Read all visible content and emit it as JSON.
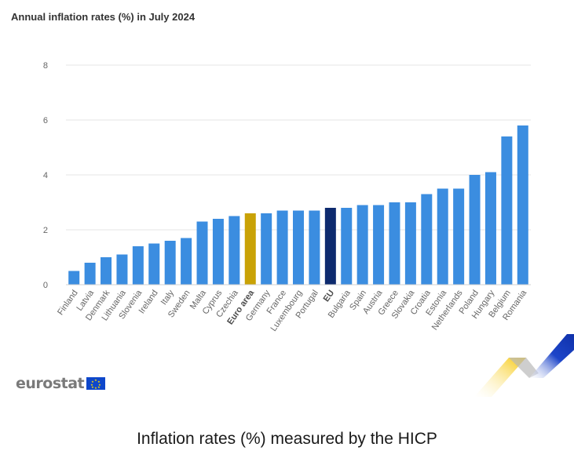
{
  "colors": {
    "default_bar": "#3b8de0",
    "euro_area_bar": "#c9a206",
    "eu_bar": "#0d2a6e"
  },
  "brand": {
    "logo_text": "eurostat"
  },
  "caption": "Inflation rates (%) measured by the HICP",
  "chart_data": {
    "type": "bar",
    "title": "Annual inflation rates (%) in July 2024",
    "xlabel": "",
    "ylabel": "",
    "ylim": [
      0,
      8
    ],
    "yticks": [
      0,
      2,
      4,
      6,
      8
    ],
    "grid": true,
    "categories": [
      "Finland",
      "Latvia",
      "Denmark",
      "Lithuania",
      "Slovenia",
      "Ireland",
      "Italy",
      "Sweden",
      "Malta",
      "Cyprus",
      "Czechia",
      "Euro area",
      "Germany",
      "France",
      "Luxembourg",
      "Portugal",
      "EU",
      "Bulgaria",
      "Spain",
      "Austria",
      "Greece",
      "Slovakia",
      "Croatia",
      "Estonia",
      "Netherlands",
      "Poland",
      "Hungary",
      "Belgium",
      "Romania"
    ],
    "values": [
      0.5,
      0.8,
      1.0,
      1.1,
      1.4,
      1.5,
      1.6,
      1.7,
      2.3,
      2.4,
      2.5,
      2.6,
      2.6,
      2.7,
      2.7,
      2.7,
      2.8,
      2.8,
      2.9,
      2.9,
      3.0,
      3.0,
      3.3,
      3.5,
      3.5,
      4.0,
      4.1,
      5.4,
      5.8
    ],
    "highlighted": {
      "Euro area": "euro_area_bar",
      "EU": "eu_bar"
    },
    "bold_labels": [
      "Euro area",
      "EU"
    ]
  }
}
